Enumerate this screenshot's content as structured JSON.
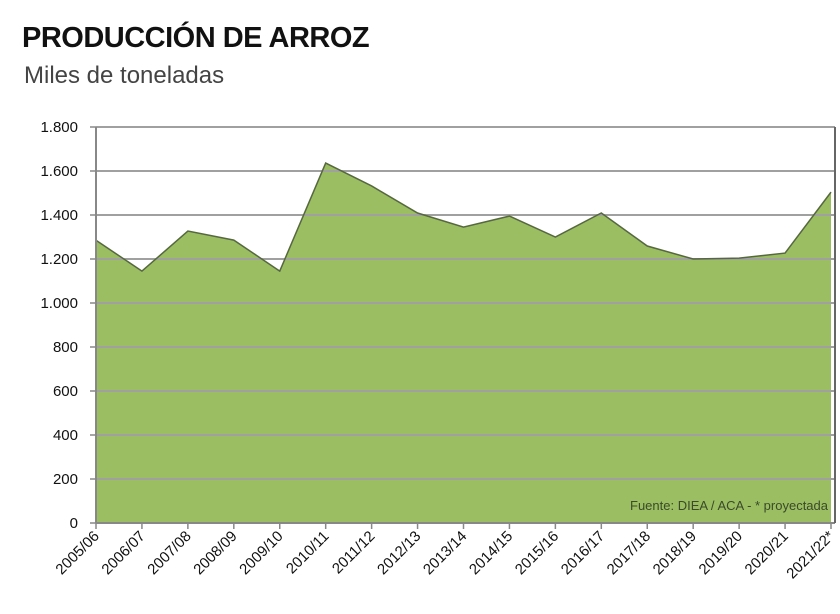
{
  "chart_data": {
    "type": "area",
    "title": "PRODUCCIÓN DE ARROZ",
    "subtitle": "Miles de toneladas",
    "categories": [
      "2005/06",
      "2006/07",
      "2007/08",
      "2008/09",
      "2009/10",
      "2010/11",
      "2011/12",
      "2012/13",
      "2013/14",
      "2014/15",
      "2015/16",
      "2016/17",
      "2017/18",
      "2018/19",
      "2019/20",
      "2020/21",
      "2021/22*"
    ],
    "values": [
      1285,
      1145,
      1327,
      1286,
      1145,
      1636,
      1532,
      1409,
      1345,
      1395,
      1300,
      1409,
      1259,
      1200,
      1204,
      1227,
      1504
    ],
    "ylim": [
      0,
      1800
    ],
    "yticks": [
      0,
      200,
      400,
      600,
      800,
      1000,
      1200,
      1400,
      1600,
      1800
    ],
    "ytick_labels": [
      "0",
      "200",
      "400",
      "600",
      "800",
      "1.000",
      "1.200",
      "1.400",
      "1.600",
      "1.800"
    ],
    "grid": true,
    "annotation": "Fuente: DIEA / ACA - * proyectada",
    "colors": {
      "fill": "#9bbe62",
      "line": "#56683f",
      "grid": "#a0a0a0"
    }
  }
}
